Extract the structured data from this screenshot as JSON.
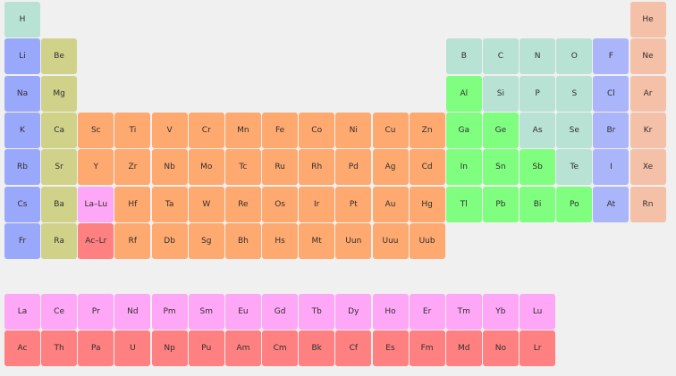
{
  "colors": {
    "background": "#f0f0f0",
    "alkali": "#9aa8fb",
    "alkaline": "#d0d28a",
    "transition": "#fea96f",
    "lanthanide": "#fea7f7",
    "actinide": "#fe8080",
    "post_transition": "#80fe80",
    "nonmetal": "#b7e2d4",
    "halogen": "#abb5fa",
    "noble": "#f4c1a8"
  },
  "elements": [
    {
      "symbol": "H",
      "row": 0,
      "col": 0,
      "cat": "nonmetal"
    },
    {
      "symbol": "He",
      "row": 0,
      "col": 17,
      "cat": "noble"
    },
    {
      "symbol": "Li",
      "row": 1,
      "col": 0,
      "cat": "alkali"
    },
    {
      "symbol": "Be",
      "row": 1,
      "col": 1,
      "cat": "alkaline"
    },
    {
      "symbol": "B",
      "row": 1,
      "col": 12,
      "cat": "nonmetal"
    },
    {
      "symbol": "C",
      "row": 1,
      "col": 13,
      "cat": "nonmetal"
    },
    {
      "symbol": "N",
      "row": 1,
      "col": 14,
      "cat": "nonmetal"
    },
    {
      "symbol": "O",
      "row": 1,
      "col": 15,
      "cat": "nonmetal"
    },
    {
      "symbol": "F",
      "row": 1,
      "col": 16,
      "cat": "halogen"
    },
    {
      "symbol": "Ne",
      "row": 1,
      "col": 17,
      "cat": "noble"
    },
    {
      "symbol": "Na",
      "row": 2,
      "col": 0,
      "cat": "alkali"
    },
    {
      "symbol": "Mg",
      "row": 2,
      "col": 1,
      "cat": "alkaline"
    },
    {
      "symbol": "Al",
      "row": 2,
      "col": 12,
      "cat": "post_transition"
    },
    {
      "symbol": "Si",
      "row": 2,
      "col": 13,
      "cat": "nonmetal"
    },
    {
      "symbol": "P",
      "row": 2,
      "col": 14,
      "cat": "nonmetal"
    },
    {
      "symbol": "S",
      "row": 2,
      "col": 15,
      "cat": "nonmetal"
    },
    {
      "symbol": "Cl",
      "row": 2,
      "col": 16,
      "cat": "halogen"
    },
    {
      "symbol": "Ar",
      "row": 2,
      "col": 17,
      "cat": "noble"
    },
    {
      "symbol": "K",
      "row": 3,
      "col": 0,
      "cat": "alkali"
    },
    {
      "symbol": "Ca",
      "row": 3,
      "col": 1,
      "cat": "alkaline"
    },
    {
      "symbol": "Sc",
      "row": 3,
      "col": 2,
      "cat": "transition"
    },
    {
      "symbol": "Ti",
      "row": 3,
      "col": 3,
      "cat": "transition"
    },
    {
      "symbol": "V",
      "row": 3,
      "col": 4,
      "cat": "transition"
    },
    {
      "symbol": "Cr",
      "row": 3,
      "col": 5,
      "cat": "transition"
    },
    {
      "symbol": "Mn",
      "row": 3,
      "col": 6,
      "cat": "transition"
    },
    {
      "symbol": "Fe",
      "row": 3,
      "col": 7,
      "cat": "transition"
    },
    {
      "symbol": "Co",
      "row": 3,
      "col": 8,
      "cat": "transition"
    },
    {
      "symbol": "Ni",
      "row": 3,
      "col": 9,
      "cat": "transition"
    },
    {
      "symbol": "Cu",
      "row": 3,
      "col": 10,
      "cat": "transition"
    },
    {
      "symbol": "Zn",
      "row": 3,
      "col": 11,
      "cat": "transition"
    },
    {
      "symbol": "Ga",
      "row": 3,
      "col": 12,
      "cat": "post_transition"
    },
    {
      "symbol": "Ge",
      "row": 3,
      "col": 13,
      "cat": "post_transition"
    },
    {
      "symbol": "As",
      "row": 3,
      "col": 14,
      "cat": "nonmetal"
    },
    {
      "symbol": "Se",
      "row": 3,
      "col": 15,
      "cat": "nonmetal"
    },
    {
      "symbol": "Br",
      "row": 3,
      "col": 16,
      "cat": "halogen"
    },
    {
      "symbol": "Kr",
      "row": 3,
      "col": 17,
      "cat": "noble"
    },
    {
      "symbol": "Rb",
      "row": 4,
      "col": 0,
      "cat": "alkali"
    },
    {
      "symbol": "Sr",
      "row": 4,
      "col": 1,
      "cat": "alkaline"
    },
    {
      "symbol": "Y",
      "row": 4,
      "col": 2,
      "cat": "transition"
    },
    {
      "symbol": "Zr",
      "row": 4,
      "col": 3,
      "cat": "transition"
    },
    {
      "symbol": "Nb",
      "row": 4,
      "col": 4,
      "cat": "transition"
    },
    {
      "symbol": "Mo",
      "row": 4,
      "col": 5,
      "cat": "transition"
    },
    {
      "symbol": "Tc",
      "row": 4,
      "col": 6,
      "cat": "transition"
    },
    {
      "symbol": "Ru",
      "row": 4,
      "col": 7,
      "cat": "transition"
    },
    {
      "symbol": "Rh",
      "row": 4,
      "col": 8,
      "cat": "transition"
    },
    {
      "symbol": "Pd",
      "row": 4,
      "col": 9,
      "cat": "transition"
    },
    {
      "symbol": "Ag",
      "row": 4,
      "col": 10,
      "cat": "transition"
    },
    {
      "symbol": "Cd",
      "row": 4,
      "col": 11,
      "cat": "transition"
    },
    {
      "symbol": "In",
      "row": 4,
      "col": 12,
      "cat": "post_transition"
    },
    {
      "symbol": "Sn",
      "row": 4,
      "col": 13,
      "cat": "post_transition"
    },
    {
      "symbol": "Sb",
      "row": 4,
      "col": 14,
      "cat": "post_transition"
    },
    {
      "symbol": "Te",
      "row": 4,
      "col": 15,
      "cat": "nonmetal"
    },
    {
      "symbol": "I",
      "row": 4,
      "col": 16,
      "cat": "halogen"
    },
    {
      "symbol": "Xe",
      "row": 4,
      "col": 17,
      "cat": "noble"
    },
    {
      "symbol": "Cs",
      "row": 5,
      "col": 0,
      "cat": "alkali"
    },
    {
      "symbol": "Ba",
      "row": 5,
      "col": 1,
      "cat": "alkaline"
    },
    {
      "symbol": "La–Lu",
      "row": 5,
      "col": 2,
      "cat": "lanthanide"
    },
    {
      "symbol": "Hf",
      "row": 5,
      "col": 3,
      "cat": "transition"
    },
    {
      "symbol": "Ta",
      "row": 5,
      "col": 4,
      "cat": "transition"
    },
    {
      "symbol": "W",
      "row": 5,
      "col": 5,
      "cat": "transition"
    },
    {
      "symbol": "Re",
      "row": 5,
      "col": 6,
      "cat": "transition"
    },
    {
      "symbol": "Os",
      "row": 5,
      "col": 7,
      "cat": "transition"
    },
    {
      "symbol": "Ir",
      "row": 5,
      "col": 8,
      "cat": "transition"
    },
    {
      "symbol": "Pt",
      "row": 5,
      "col": 9,
      "cat": "transition"
    },
    {
      "symbol": "Au",
      "row": 5,
      "col": 10,
      "cat": "transition"
    },
    {
      "symbol": "Hg",
      "row": 5,
      "col": 11,
      "cat": "transition"
    },
    {
      "symbol": "Tl",
      "row": 5,
      "col": 12,
      "cat": "post_transition"
    },
    {
      "symbol": "Pb",
      "row": 5,
      "col": 13,
      "cat": "post_transition"
    },
    {
      "symbol": "Bi",
      "row": 5,
      "col": 14,
      "cat": "post_transition"
    },
    {
      "symbol": "Po",
      "row": 5,
      "col": 15,
      "cat": "post_transition"
    },
    {
      "symbol": "At",
      "row": 5,
      "col": 16,
      "cat": "halogen"
    },
    {
      "symbol": "Rn",
      "row": 5,
      "col": 17,
      "cat": "noble"
    },
    {
      "symbol": "Fr",
      "row": 6,
      "col": 0,
      "cat": "alkali"
    },
    {
      "symbol": "Ra",
      "row": 6,
      "col": 1,
      "cat": "alkaline"
    },
    {
      "symbol": "Ac–Lr",
      "row": 6,
      "col": 2,
      "cat": "actinide"
    },
    {
      "symbol": "Rf",
      "row": 6,
      "col": 3,
      "cat": "transition"
    },
    {
      "symbol": "Db",
      "row": 6,
      "col": 4,
      "cat": "transition"
    },
    {
      "symbol": "Sg",
      "row": 6,
      "col": 5,
      "cat": "transition"
    },
    {
      "symbol": "Bh",
      "row": 6,
      "col": 6,
      "cat": "transition"
    },
    {
      "symbol": "Hs",
      "row": 6,
      "col": 7,
      "cat": "transition"
    },
    {
      "symbol": "Mt",
      "row": 6,
      "col": 8,
      "cat": "transition"
    },
    {
      "symbol": "Uun",
      "row": 6,
      "col": 9,
      "cat": "transition"
    },
    {
      "symbol": "Uuu",
      "row": 6,
      "col": 10,
      "cat": "transition"
    },
    {
      "symbol": "Uub",
      "row": 6,
      "col": 11,
      "cat": "transition"
    },
    {
      "symbol": "La",
      "row": 8,
      "col": 0,
      "cat": "lanthanide"
    },
    {
      "symbol": "Ce",
      "row": 8,
      "col": 1,
      "cat": "lanthanide"
    },
    {
      "symbol": "Pr",
      "row": 8,
      "col": 2,
      "cat": "lanthanide"
    },
    {
      "symbol": "Nd",
      "row": 8,
      "col": 3,
      "cat": "lanthanide"
    },
    {
      "symbol": "Pm",
      "row": 8,
      "col": 4,
      "cat": "lanthanide"
    },
    {
      "symbol": "Sm",
      "row": 8,
      "col": 5,
      "cat": "lanthanide"
    },
    {
      "symbol": "Eu",
      "row": 8,
      "col": 6,
      "cat": "lanthanide"
    },
    {
      "symbol": "Gd",
      "row": 8,
      "col": 7,
      "cat": "lanthanide"
    },
    {
      "symbol": "Tb",
      "row": 8,
      "col": 8,
      "cat": "lanthanide"
    },
    {
      "symbol": "Dy",
      "row": 8,
      "col": 9,
      "cat": "lanthanide"
    },
    {
      "symbol": "Ho",
      "row": 8,
      "col": 10,
      "cat": "lanthanide"
    },
    {
      "symbol": "Er",
      "row": 8,
      "col": 11,
      "cat": "lanthanide"
    },
    {
      "symbol": "Tm",
      "row": 8,
      "col": 12,
      "cat": "lanthanide"
    },
    {
      "symbol": "Yb",
      "row": 8,
      "col": 13,
      "cat": "lanthanide"
    },
    {
      "symbol": "Lu",
      "row": 8,
      "col": 14,
      "cat": "lanthanide"
    },
    {
      "symbol": "Ac",
      "row": 9,
      "col": 0,
      "cat": "actinide"
    },
    {
      "symbol": "Th",
      "row": 9,
      "col": 1,
      "cat": "actinide"
    },
    {
      "symbol": "Pa",
      "row": 9,
      "col": 2,
      "cat": "actinide"
    },
    {
      "symbol": "U",
      "row": 9,
      "col": 3,
      "cat": "actinide"
    },
    {
      "symbol": "Np",
      "row": 9,
      "col": 4,
      "cat": "actinide"
    },
    {
      "symbol": "Pu",
      "row": 9,
      "col": 5,
      "cat": "actinide"
    },
    {
      "symbol": "Am",
      "row": 9,
      "col": 6,
      "cat": "actinide"
    },
    {
      "symbol": "Cm",
      "row": 9,
      "col": 7,
      "cat": "actinide"
    },
    {
      "symbol": "Bk",
      "row": 9,
      "col": 8,
      "cat": "actinide"
    },
    {
      "symbol": "Cf",
      "row": 9,
      "col": 9,
      "cat": "actinide"
    },
    {
      "symbol": "Es",
      "row": 9,
      "col": 10,
      "cat": "actinide"
    },
    {
      "symbol": "Fm",
      "row": 9,
      "col": 11,
      "cat": "actinide"
    },
    {
      "symbol": "Md",
      "row": 9,
      "col": 12,
      "cat": "actinide"
    },
    {
      "symbol": "No",
      "row": 9,
      "col": 13,
      "cat": "actinide"
    },
    {
      "symbol": "Lr",
      "row": 9,
      "col": 14,
      "cat": "actinide"
    }
  ]
}
